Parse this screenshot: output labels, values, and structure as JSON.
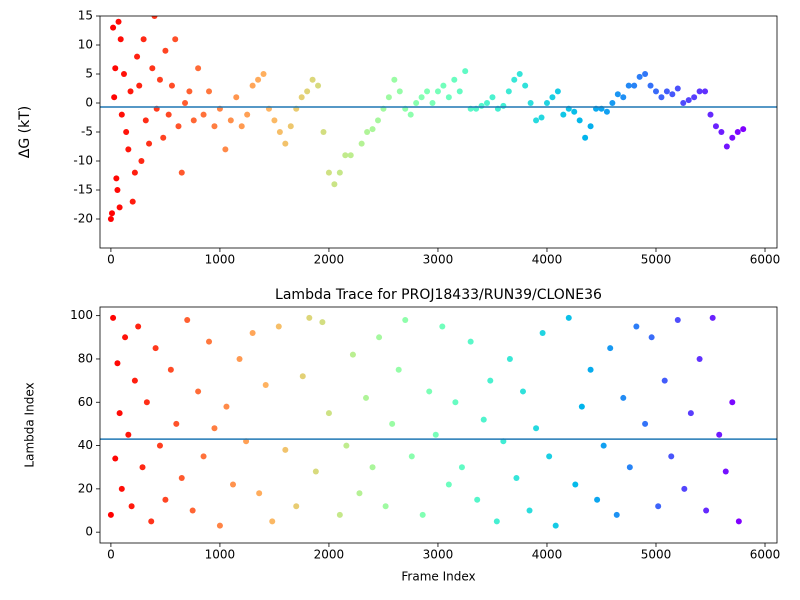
{
  "chart_data": [
    {
      "type": "scatter",
      "ylabel": "ΔG (kT)",
      "colormap": "rainbow_r",
      "hline": -0.7,
      "hline_color": "#1f77b4",
      "xlim": [
        -100,
        6110
      ],
      "ylim": [
        -25,
        15
      ],
      "xticks": [
        0,
        1000,
        2000,
        3000,
        4000,
        5000,
        6000
      ],
      "yticks": [
        -20,
        -15,
        -10,
        -5,
        0,
        5,
        10,
        15
      ],
      "x": [
        0,
        10,
        20,
        30,
        40,
        50,
        60,
        70,
        80,
        90,
        100,
        120,
        140,
        160,
        180,
        200,
        220,
        240,
        260,
        280,
        300,
        320,
        350,
        380,
        400,
        420,
        450,
        480,
        500,
        530,
        560,
        590,
        620,
        650,
        680,
        720,
        760,
        800,
        850,
        900,
        950,
        1000,
        1050,
        1100,
        1150,
        1200,
        1250,
        1300,
        1350,
        1400,
        1450,
        1500,
        1550,
        1600,
        1650,
        1700,
        1750,
        1800,
        1850,
        1900,
        1950,
        2000,
        2050,
        2100,
        2150,
        2200,
        2300,
        2350,
        2400,
        2450,
        2500,
        2550,
        2600,
        2650,
        2700,
        2750,
        2800,
        2850,
        2900,
        2950,
        3000,
        3050,
        3100,
        3150,
        3200,
        3250,
        3300,
        3350,
        3400,
        3450,
        3500,
        3550,
        3600,
        3650,
        3700,
        3750,
        3800,
        3850,
        3900,
        3950,
        4000,
        4050,
        4100,
        4150,
        4200,
        4250,
        4300,
        4350,
        4400,
        4450,
        4500,
        4550,
        4600,
        4650,
        4700,
        4750,
        4800,
        4850,
        4900,
        4950,
        5000,
        5050,
        5100,
        5150,
        5200,
        5250,
        5300,
        5350,
        5400,
        5450,
        5500,
        5550,
        5600,
        5650,
        5700,
        5750,
        5800
      ],
      "values": [
        -20,
        -19,
        13,
        1,
        6,
        -13,
        -15,
        14,
        -18,
        11,
        -2,
        5,
        -5,
        -8,
        2,
        -17,
        -12,
        8,
        3,
        -10,
        11,
        -3,
        -7,
        6,
        15,
        -1,
        4,
        -6,
        9,
        -2,
        3,
        11,
        -4,
        -12,
        0,
        2,
        -3,
        6,
        -2,
        2,
        -4,
        -1,
        -8,
        -3,
        1,
        -4,
        -2,
        3,
        4,
        5,
        -1,
        -3,
        -5,
        -7,
        -4,
        -1,
        1,
        2,
        4,
        3,
        -5,
        -12,
        -14,
        -12,
        -9,
        -9,
        -7,
        -5,
        -4.5,
        -3,
        -1,
        1,
        4,
        2,
        -1,
        -2,
        0,
        1,
        2,
        0,
        2,
        3,
        1,
        4,
        2,
        5.5,
        -1,
        -1,
        -0.5,
        0,
        1,
        -1,
        -0.5,
        2,
        4,
        5,
        3,
        0,
        -3,
        -2.5,
        0,
        1,
        2,
        -2,
        -1,
        -1.5,
        -3,
        -6,
        -4,
        -1,
        -1,
        -1.5,
        0,
        1.5,
        1,
        3,
        3,
        4.5,
        5,
        3,
        2,
        1,
        2,
        1.5,
        2.5,
        0,
        0.5,
        1,
        2,
        2,
        -2,
        -4,
        -5,
        -7.5,
        -6,
        -5,
        -4.5
      ]
    },
    {
      "type": "scatter",
      "title": "Lambda Trace for PROJ18433/RUN39/CLONE36",
      "xlabel": "Frame Index",
      "ylabel": "Lambda Index",
      "colormap": "rainbow_r",
      "hline": 43,
      "hline_color": "#1f77b4",
      "xlim": [
        -100,
        6110
      ],
      "ylim": [
        -5,
        104
      ],
      "xticks": [
        0,
        1000,
        2000,
        3000,
        4000,
        5000,
        6000
      ],
      "yticks": [
        0,
        20,
        40,
        60,
        80,
        100
      ],
      "x": [
        0,
        20,
        40,
        60,
        80,
        100,
        130,
        160,
        190,
        220,
        250,
        290,
        330,
        370,
        410,
        450,
        500,
        550,
        600,
        650,
        700,
        750,
        800,
        850,
        900,
        950,
        1000,
        1060,
        1120,
        1180,
        1240,
        1300,
        1360,
        1420,
        1480,
        1540,
        1600,
        1700,
        1760,
        1820,
        1880,
        1940,
        2000,
        2100,
        2160,
        2220,
        2280,
        2340,
        2400,
        2460,
        2520,
        2580,
        2640,
        2700,
        2760,
        2860,
        2920,
        2980,
        3040,
        3100,
        3160,
        3220,
        3300,
        3360,
        3420,
        3480,
        3540,
        3600,
        3660,
        3720,
        3780,
        3840,
        3900,
        3960,
        4020,
        4080,
        4200,
        4260,
        4320,
        4400,
        4460,
        4520,
        4580,
        4640,
        4700,
        4760,
        4820,
        4900,
        4960,
        5020,
        5080,
        5140,
        5200,
        5260,
        5320,
        5400,
        5460,
        5520,
        5580,
        5640,
        5700,
        5760
      ],
      "values": [
        8,
        99,
        34,
        78,
        55,
        20,
        90,
        45,
        12,
        70,
        95,
        30,
        60,
        5,
        85,
        40,
        15,
        75,
        50,
        25,
        98,
        10,
        65,
        35,
        88,
        48,
        3,
        58,
        22,
        80,
        42,
        92,
        18,
        68,
        5,
        95,
        38,
        12,
        72,
        99,
        28,
        97,
        55,
        8,
        40,
        82,
        18,
        62,
        30,
        90,
        12,
        50,
        75,
        98,
        35,
        8,
        65,
        45,
        95,
        22,
        60,
        30,
        88,
        15,
        52,
        70,
        5,
        42,
        80,
        25,
        65,
        10,
        48,
        92,
        35,
        3,
        99,
        22,
        58,
        75,
        15,
        40,
        85,
        8,
        62,
        30,
        95,
        50,
        90,
        12,
        70,
        35,
        98,
        20,
        55,
        80,
        10,
        99,
        45,
        28,
        60,
        5
      ]
    }
  ]
}
